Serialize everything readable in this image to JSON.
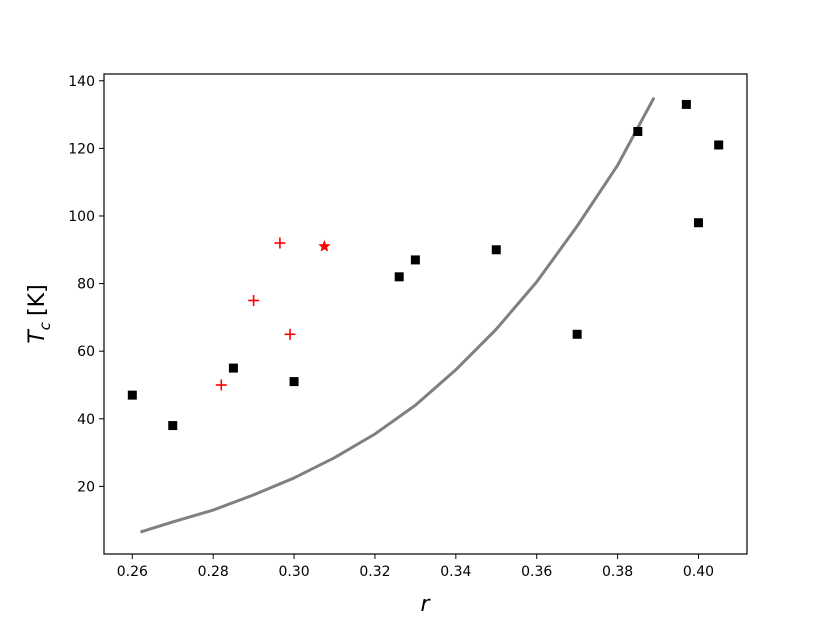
{
  "chart_data": {
    "type": "scatter",
    "xlabel": "r",
    "ylabel_main": "T",
    "ylabel_sub": "c",
    "ylabel_unit": "[K]",
    "xlim": [
      0.253,
      0.412
    ],
    "ylim": [
      0,
      142
    ],
    "x_ticks": [
      0.26,
      0.28,
      0.3,
      0.32,
      0.34,
      0.36,
      0.38,
      0.4
    ],
    "x_tick_labels": [
      "0.26",
      "0.28",
      "0.30",
      "0.32",
      "0.34",
      "0.36",
      "0.38",
      "0.40"
    ],
    "y_ticks": [
      20,
      40,
      60,
      80,
      100,
      120,
      140
    ],
    "y_tick_labels": [
      "20",
      "40",
      "60",
      "80",
      "100",
      "120",
      "140"
    ],
    "grid": false,
    "series": [
      {
        "marker": "square",
        "color": "#000000",
        "points": [
          {
            "x": 0.26,
            "y": 47
          },
          {
            "x": 0.27,
            "y": 38
          },
          {
            "x": 0.285,
            "y": 55
          },
          {
            "x": 0.3,
            "y": 51
          },
          {
            "x": 0.326,
            "y": 82
          },
          {
            "x": 0.33,
            "y": 87
          },
          {
            "x": 0.35,
            "y": 90
          },
          {
            "x": 0.37,
            "y": 65
          },
          {
            "x": 0.385,
            "y": 125
          },
          {
            "x": 0.397,
            "y": 133
          },
          {
            "x": 0.4,
            "y": 98
          },
          {
            "x": 0.405,
            "y": 121
          }
        ]
      },
      {
        "marker": "plus",
        "color": "#ff0000",
        "points": [
          {
            "x": 0.282,
            "y": 50
          },
          {
            "x": 0.29,
            "y": 75
          },
          {
            "x": 0.2965,
            "y": 92
          },
          {
            "x": 0.299,
            "y": 65
          }
        ]
      },
      {
        "marker": "star",
        "color": "#ff0000",
        "points": [
          {
            "x": 0.3075,
            "y": 91
          }
        ]
      },
      {
        "type": "line",
        "color": "#808080",
        "points": [
          {
            "x": 0.262,
            "y": 6.5
          },
          {
            "x": 0.27,
            "y": 9.5
          },
          {
            "x": 0.28,
            "y": 13
          },
          {
            "x": 0.29,
            "y": 17.5
          },
          {
            "x": 0.3,
            "y": 22.5
          },
          {
            "x": 0.31,
            "y": 28.5
          },
          {
            "x": 0.32,
            "y": 35.5
          },
          {
            "x": 0.33,
            "y": 44
          },
          {
            "x": 0.34,
            "y": 54.5
          },
          {
            "x": 0.35,
            "y": 66.5
          },
          {
            "x": 0.36,
            "y": 80.5
          },
          {
            "x": 0.37,
            "y": 97
          },
          {
            "x": 0.38,
            "y": 115
          },
          {
            "x": 0.389,
            "y": 135
          }
        ]
      }
    ]
  }
}
